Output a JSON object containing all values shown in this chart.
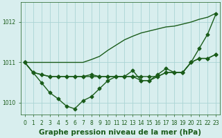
{
  "title": "Graphe pression niveau de la mer (hPa)",
  "xlabel_hours": [
    0,
    1,
    2,
    3,
    4,
    5,
    6,
    7,
    8,
    9,
    10,
    11,
    12,
    13,
    14,
    15,
    16,
    17,
    18,
    19,
    20,
    21,
    22,
    23
  ],
  "line_zigzag": [
    1011.0,
    1010.75,
    1010.5,
    1010.25,
    1010.1,
    1009.92,
    1009.85,
    1010.05,
    1010.15,
    1010.35,
    1010.55,
    1010.65,
    1010.65,
    1010.8,
    1010.55,
    1010.55,
    1010.7,
    1010.85,
    1010.75,
    1010.75,
    1011.0,
    1011.35,
    1011.7,
    1012.2
  ],
  "line_flat1": [
    1011.0,
    1010.75,
    1010.7,
    1010.65,
    1010.65,
    1010.65,
    1010.65,
    1010.65,
    1010.65,
    1010.65,
    1010.65,
    1010.65,
    1010.65,
    1010.65,
    1010.65,
    1010.65,
    1010.65,
    1010.75,
    1010.75,
    1010.75,
    1011.0,
    1011.1,
    1011.1,
    1011.2
  ],
  "line_flat2": [
    1011.0,
    1010.75,
    1010.7,
    1010.65,
    1010.65,
    1010.65,
    1010.65,
    1010.65,
    1010.7,
    1010.65,
    1010.65,
    1010.65,
    1010.65,
    1010.65,
    1010.55,
    1010.55,
    1010.65,
    1010.75,
    1010.75,
    1010.75,
    1011.0,
    1011.1,
    1011.1,
    1011.2
  ],
  "line_rising": [
    1011.0,
    1011.0,
    1011.0,
    1011.0,
    1011.0,
    1011.0,
    1011.0,
    1011.0,
    1011.07,
    1011.15,
    1011.3,
    1011.43,
    1011.56,
    1011.65,
    1011.73,
    1011.78,
    1011.83,
    1011.88,
    1011.9,
    1011.95,
    1012.0,
    1012.07,
    1012.12,
    1012.22
  ],
  "ylim": [
    1009.7,
    1012.5
  ],
  "yticks": [
    1010,
    1011,
    1012
  ],
  "bg_color": "#d8eeee",
  "grid_color": "#aad4d4",
  "line_color": "#1a5c1a",
  "markersize": 2.5,
  "linewidth": 1.0,
  "title_fontsize": 7.5,
  "tick_fontsize": 5.5
}
